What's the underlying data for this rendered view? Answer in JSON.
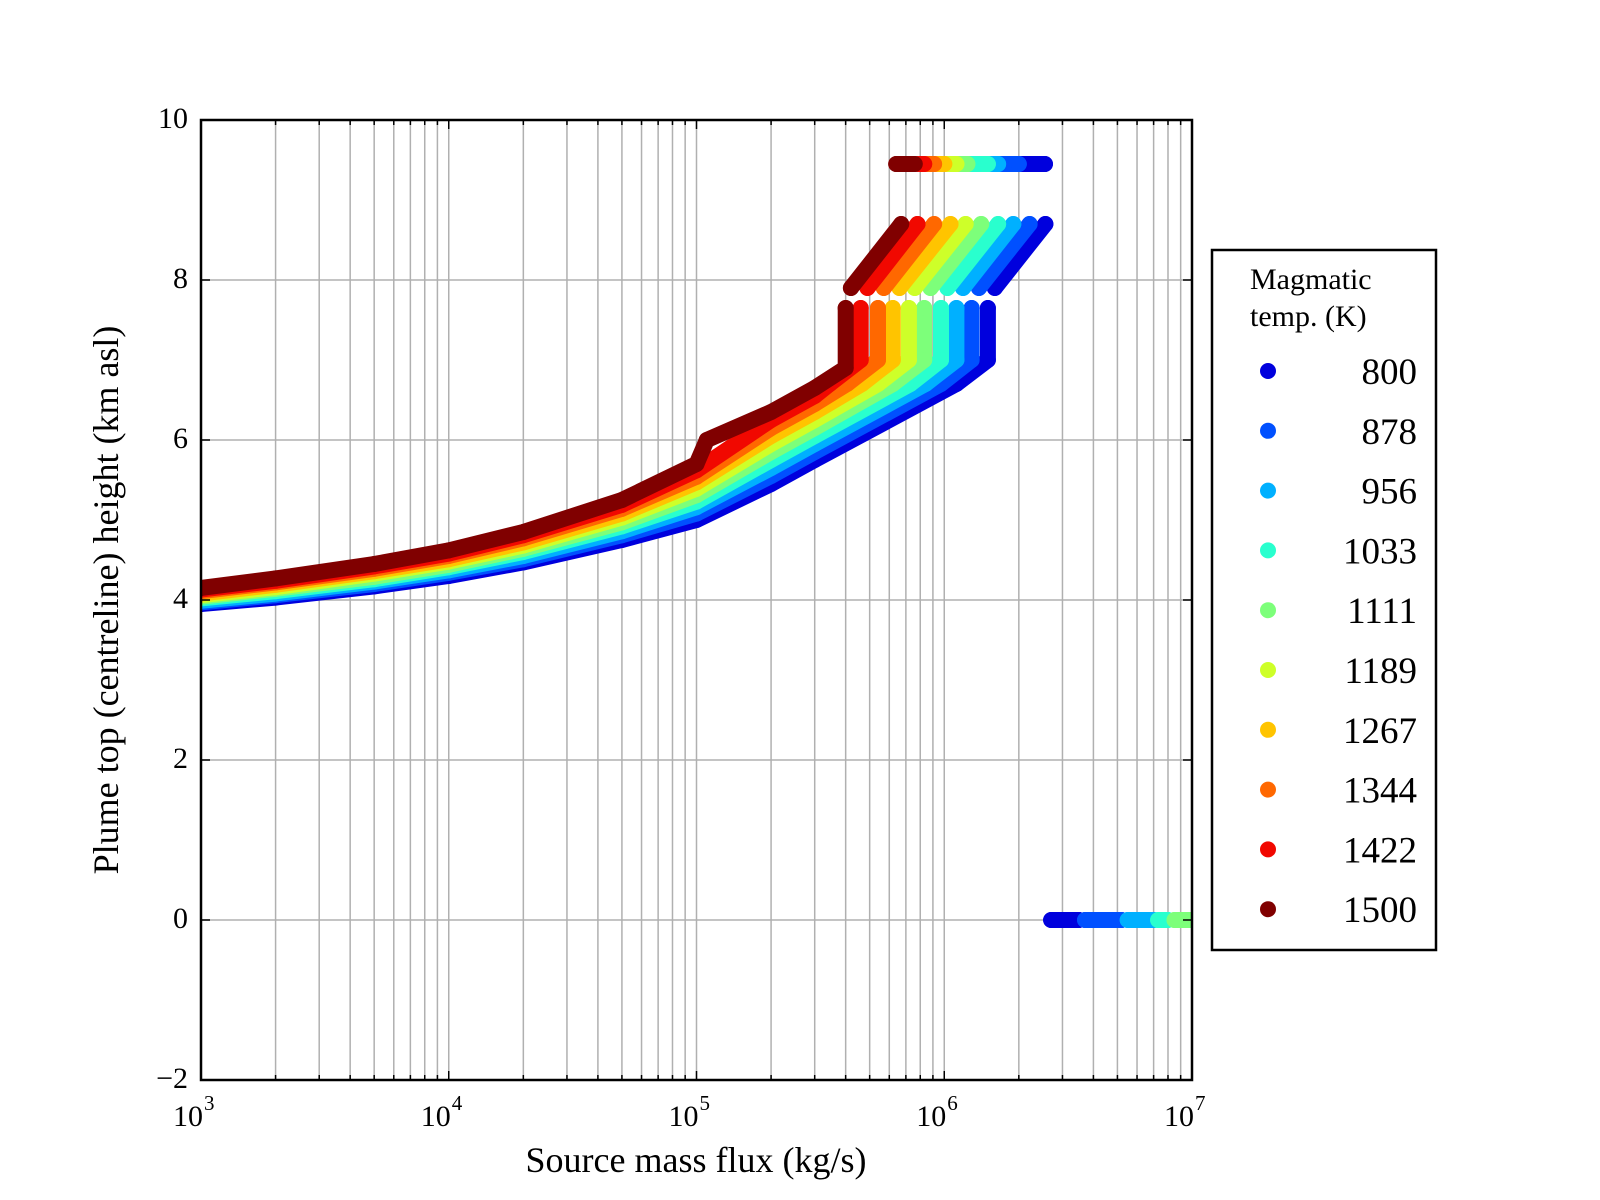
{
  "chart_data": {
    "type": "scatter",
    "xlabel": "Source mass flux (kg/s)",
    "ylabel": "Plume top (centreline) height (km asl)",
    "xscale": "log",
    "xlim": [
      1000,
      10000000
    ],
    "ylim": [
      -2,
      10
    ],
    "grid": true,
    "x_ticks": [
      {
        "base": "10",
        "exp": "3",
        "value": 1000
      },
      {
        "base": "10",
        "exp": "4",
        "value": 10000
      },
      {
        "base": "10",
        "exp": "5",
        "value": 100000
      },
      {
        "base": "10",
        "exp": "6",
        "value": 1000000
      },
      {
        "base": "10",
        "exp": "7",
        "value": 10000000
      }
    ],
    "y_ticks": [
      {
        "label": "−2",
        "value": -2
      },
      {
        "label": "0",
        "value": 0
      },
      {
        "label": "2",
        "value": 2
      },
      {
        "label": "4",
        "value": 4
      },
      {
        "label": "6",
        "value": 6
      },
      {
        "label": "8",
        "value": 8
      },
      {
        "label": "10",
        "value": 10
      }
    ],
    "legend": {
      "title_line1": "Magmatic",
      "title_line2": "temp. (K)",
      "placement": "right, outside"
    },
    "series": [
      {
        "name": "800",
        "color": "#0000dd",
        "segments": [
          [
            [
              1000,
              3.95
            ],
            [
              2000,
              4.03
            ],
            [
              5000,
              4.17
            ],
            [
              10000,
              4.3
            ],
            [
              20000,
              4.47
            ],
            [
              50000,
              4.75
            ],
            [
              100000,
              5.0
            ],
            [
              200000,
              5.45
            ],
            [
              300000,
              5.75
            ],
            [
              1120000.0,
              6.7
            ],
            [
              1500000.0,
              7.0
            ],
            [
              1500000.0,
              7.65
            ]
          ],
          [
            [
              1600000.0,
              7.9
            ],
            [
              2560000.0,
              8.7
            ]
          ],
          [
            [
              2050000.0,
              9.45
            ],
            [
              2550000.0,
              9.45
            ]
          ],
          [
            [
              2700000.0,
              0
            ],
            [
              3500000.0,
              0
            ]
          ]
        ]
      },
      {
        "name": "878",
        "color": "#0050ff",
        "segments": [
          [
            [
              1000,
              3.97
            ],
            [
              2000,
              4.06
            ],
            [
              5000,
              4.2
            ],
            [
              10000,
              4.34
            ],
            [
              20000,
              4.51
            ],
            [
              50000,
              4.81
            ],
            [
              100000,
              5.08
            ],
            [
              200000,
              5.55
            ],
            [
              300000,
              5.85
            ],
            [
              970000.0,
              6.7
            ],
            [
              1290000.0,
              7.0
            ],
            [
              1290000.0,
              7.65
            ]
          ],
          [
            [
              1380000.0,
              7.9
            ],
            [
              2210000.0,
              8.7
            ]
          ],
          [
            [
              1700000.0,
              9.45
            ],
            [
              2000000.0,
              9.45
            ]
          ],
          [
            [
              3700000.0,
              0
            ],
            [
              5200000.0,
              0
            ]
          ]
        ]
      },
      {
        "name": "956",
        "color": "#00b0ff",
        "segments": [
          [
            [
              1000,
              3.99
            ],
            [
              2000,
              4.08
            ],
            [
              5000,
              4.23
            ],
            [
              10000,
              4.37
            ],
            [
              20000,
              4.55
            ],
            [
              50000,
              4.86
            ],
            [
              100000,
              5.16
            ],
            [
              200000,
              5.65
            ],
            [
              300000,
              5.95
            ],
            [
              840000.0,
              6.7
            ],
            [
              1120000.0,
              7.0
            ],
            [
              1120000.0,
              7.65
            ]
          ],
          [
            [
              1190000.0,
              7.9
            ],
            [
              1900000.0,
              8.7
            ]
          ],
          [
            [
              1550000.0,
              9.45
            ],
            [
              1650000.0,
              9.45
            ]
          ],
          [
            [
              5500000.0,
              0
            ],
            [
              7000000.0,
              0
            ]
          ]
        ]
      },
      {
        "name": "1033",
        "color": "#29ffce",
        "segments": [
          [
            [
              1000,
              4.02
            ],
            [
              2000,
              4.11
            ],
            [
              5000,
              4.26
            ],
            [
              10000,
              4.41
            ],
            [
              20000,
              4.6
            ],
            [
              50000,
              4.92
            ],
            [
              100000,
              5.23
            ],
            [
              200000,
              5.75
            ],
            [
              300000,
              6.05
            ],
            [
              730000.0,
              6.7
            ],
            [
              970000.0,
              7.0
            ],
            [
              970000.0,
              7.65
            ]
          ],
          [
            [
              1030000.0,
              7.9
            ],
            [
              1650000.0,
              8.7
            ]
          ],
          [
            [
              1280000.0,
              9.45
            ],
            [
              1500000.0,
              9.45
            ]
          ],
          [
            [
              7300000.0,
              0
            ],
            [
              8000000.0,
              0
            ]
          ]
        ]
      },
      {
        "name": "1111",
        "color": "#7dff7a",
        "segments": [
          [
            [
              1000,
              4.04
            ],
            [
              2000,
              4.14
            ],
            [
              5000,
              4.29
            ],
            [
              10000,
              4.44
            ],
            [
              20000,
              4.64
            ],
            [
              50000,
              4.97
            ],
            [
              100000,
              5.31
            ],
            [
              200000,
              5.85
            ],
            [
              300000,
              6.15
            ],
            [
              620000.0,
              6.7
            ],
            [
              830000.0,
              7.0
            ],
            [
              830000.0,
              7.65
            ]
          ],
          [
            [
              880000.0,
              7.9
            ],
            [
              1410000.0,
              8.7
            ]
          ],
          [
            [
              1150000.0,
              9.45
            ],
            [
              1240000.0,
              9.45
            ]
          ],
          [
            [
              8500000.0,
              0
            ],
            [
              10000000.0,
              0
            ]
          ]
        ]
      },
      {
        "name": "1189",
        "color": "#ceff29",
        "segments": [
          [
            [
              1000,
              4.06
            ],
            [
              2000,
              4.16
            ],
            [
              5000,
              4.33
            ],
            [
              10000,
              4.48
            ],
            [
              20000,
              4.68
            ],
            [
              50000,
              5.03
            ],
            [
              100000,
              5.39
            ],
            [
              200000,
              5.95
            ],
            [
              300000,
              6.25
            ],
            [
              540000.0,
              6.7
            ],
            [
              720000.0,
              7.0
            ],
            [
              720000.0,
              7.65
            ]
          ],
          [
            [
              760000.0,
              7.9
            ],
            [
              1220000.0,
              8.7
            ]
          ],
          [
            [
              1030000.0,
              9.45
            ],
            [
              1120000.0,
              9.45
            ]
          ]
        ]
      },
      {
        "name": "1267",
        "color": "#ffc400",
        "segments": [
          [
            [
              1000,
              4.08
            ],
            [
              2000,
              4.19
            ],
            [
              5000,
              4.36
            ],
            [
              10000,
              4.51
            ],
            [
              20000,
              4.72
            ],
            [
              50000,
              5.08
            ],
            [
              100000,
              5.47
            ],
            [
              200000,
              6.05
            ],
            [
              300000,
              6.35
            ],
            [
              465000.0,
              6.7
            ],
            [
              620000.0,
              7.0
            ],
            [
              620000.0,
              7.65
            ]
          ],
          [
            [
              660000.0,
              7.9
            ],
            [
              1060000.0,
              8.7
            ]
          ],
          [
            [
              940000.0,
              9.45
            ],
            [
              1000000.0,
              9.45
            ]
          ]
        ]
      },
      {
        "name": "1344",
        "color": "#ff6800",
        "segments": [
          [
            [
              1000,
              4.11
            ],
            [
              2000,
              4.22
            ],
            [
              5000,
              4.39
            ],
            [
              10000,
              4.55
            ],
            [
              20000,
              4.77
            ],
            [
              50000,
              5.14
            ],
            [
              100000,
              5.54
            ],
            [
              200000,
              6.15
            ],
            [
              300000,
              6.45
            ],
            [
              405000.0,
              6.7
            ],
            [
              540000.0,
              7.0
            ],
            [
              540000.0,
              7.65
            ]
          ],
          [
            [
              570000.0,
              7.9
            ],
            [
              910000.0,
              8.7
            ]
          ],
          [
            [
              860000.0,
              9.45
            ],
            [
              910000.0,
              9.45
            ]
          ]
        ]
      },
      {
        "name": "1422",
        "color": "#f10800",
        "segments": [
          [
            [
              1000,
              4.13
            ],
            [
              2000,
              4.24
            ],
            [
              5000,
              4.42
            ],
            [
              10000,
              4.58
            ],
            [
              20000,
              4.81
            ],
            [
              50000,
              5.19
            ],
            [
              100000,
              5.62
            ],
            [
              200000,
              6.25
            ],
            [
              300000,
              6.55
            ],
            [
              345000.0,
              6.7
            ],
            [
              460000.0,
              7.0
            ],
            [
              460000.0,
              7.65
            ]
          ],
          [
            [
              490000.0,
              7.9
            ],
            [
              780000.0,
              8.7
            ]
          ],
          [
            [
              790000.0,
              9.45
            ],
            [
              830000.0,
              9.45
            ]
          ]
        ]
      },
      {
        "name": "1500",
        "color": "#800000",
        "segments": [
          [
            [
              1000,
              4.15
            ],
            [
              2000,
              4.27
            ],
            [
              5000,
              4.45
            ],
            [
              10000,
              4.62
            ],
            [
              20000,
              4.85
            ],
            [
              50000,
              5.25
            ],
            [
              100000,
              5.7
            ],
            [
              110000,
              6.0
            ],
            [
              200000,
              6.35
            ],
            [
              300000,
              6.65
            ],
            [
              400000,
              6.9
            ],
            [
              400000,
              7.65
            ]
          ],
          [
            [
              420000.0,
              7.9
            ],
            [
              670000.0,
              8.7
            ]
          ],
          [
            [
              640000.0,
              9.45
            ],
            [
              760000.0,
              9.45
            ]
          ]
        ]
      }
    ]
  }
}
